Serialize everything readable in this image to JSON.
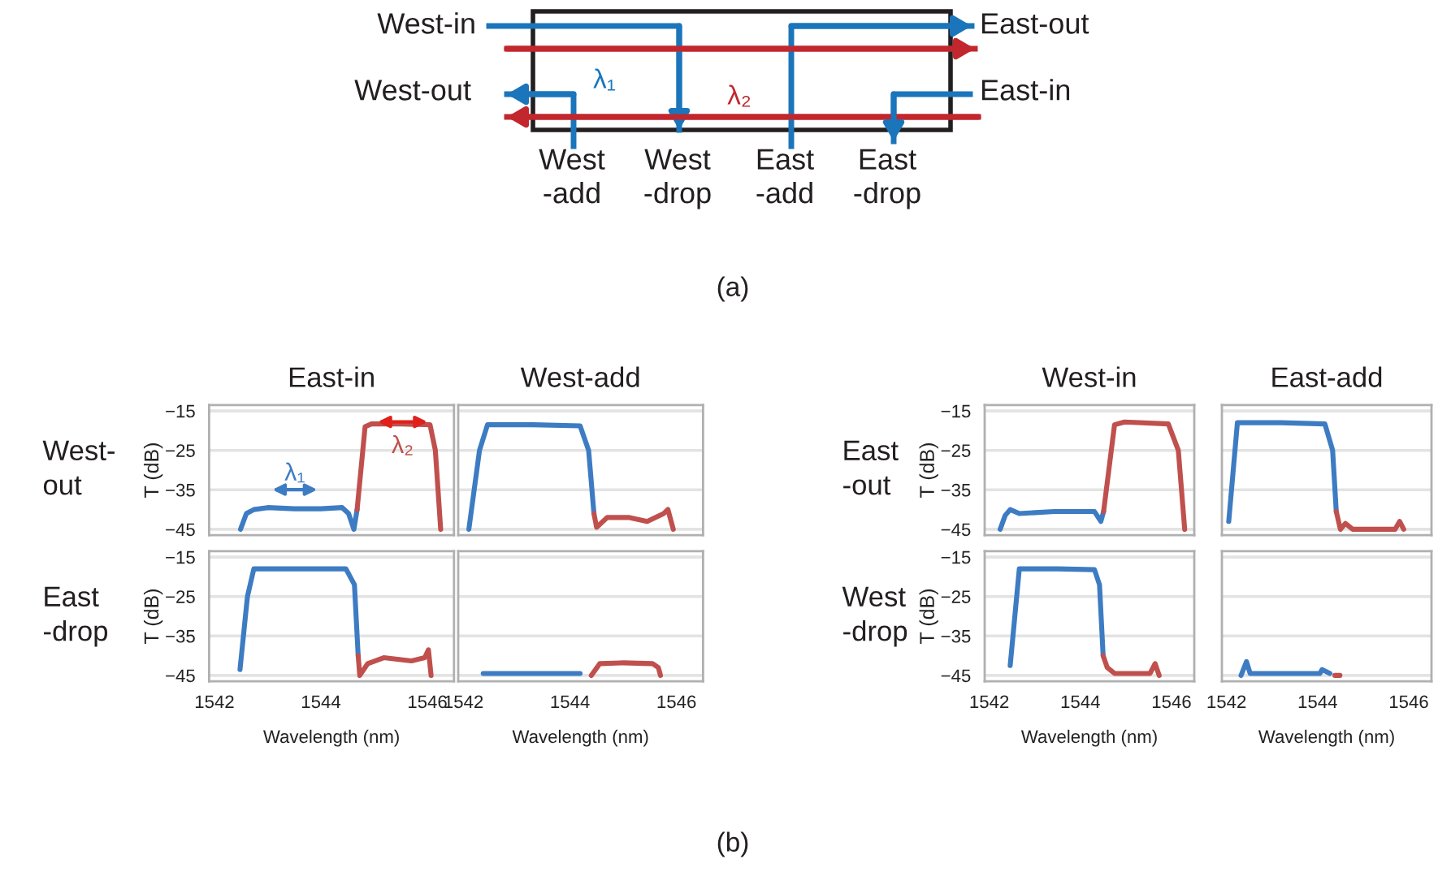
{
  "chart_data": [
    {
      "type": "other",
      "annotations": [
        "West-in",
        "West-out",
        "East-out",
        "East-in",
        "West\n-add",
        "West\n-drop",
        "East\n-add",
        "East\n-drop",
        "λ₁",
        "λ₂",
        "(a)",
        "(b)"
      ]
    },
    {
      "type": "line",
      "title": "East-in",
      "ylabel": "T (dB)",
      "xlim": [
        1541.9,
        1546.5
      ],
      "ylim": [
        -46.5,
        -13.5
      ],
      "yticks": [
        {
          "value": -15,
          "label": "−15"
        },
        {
          "value": -25,
          "label": "−25"
        },
        {
          "value": -35,
          "label": "−35"
        },
        {
          "value": -45,
          "label": "−45"
        }
      ],
      "grid": "y",
      "tick_labels": "y",
      "annotations": [
        "West-\nout",
        "λ₁",
        "λ₂"
      ],
      "series": [
        {
          "color": "#3d7cc2",
          "x": [
            1542.49,
            1542.6,
            1542.74,
            1543.0,
            1543.5,
            1544.0,
            1544.4,
            1544.52,
            1544.62,
            1544.68
          ],
          "values": [
            -45,
            -41,
            -40,
            -39.5,
            -39.8,
            -39.8,
            -39.5,
            -41,
            -45,
            -40
          ]
        },
        {
          "color": "#c0504d",
          "x": [
            1544.68,
            1544.83,
            1544.95,
            1545.5,
            1546.05,
            1546.15,
            1546.25
          ],
          "values": [
            -40,
            -19,
            -18.3,
            -18.3,
            -18.5,
            -25,
            -45
          ]
        }
      ]
    },
    {
      "type": "line",
      "title": "West-add",
      "xlim": [
        1541.9,
        1546.5
      ],
      "ylim": [
        -46.5,
        -13.5
      ],
      "yticks": [
        {
          "value": -15,
          "label": null
        },
        {
          "value": -25,
          "label": null
        },
        {
          "value": -35,
          "label": null
        },
        {
          "value": -45,
          "label": null
        }
      ],
      "grid": "y",
      "tick_labels": false,
      "series": [
        {
          "color": "#3d7cc2",
          "x": [
            1542.1,
            1542.3,
            1542.45,
            1543.3,
            1544.19,
            1544.35,
            1544.45
          ],
          "values": [
            -45,
            -25,
            -18.5,
            -18.5,
            -18.8,
            -25,
            -41
          ]
        },
        {
          "color": "#c0504d",
          "x": [
            1544.45,
            1544.5,
            1544.7,
            1545.1,
            1545.45,
            1545.76,
            1545.84,
            1545.94
          ],
          "values": [
            -41,
            -44.5,
            -42,
            -42,
            -43,
            -41,
            -40,
            -45
          ]
        }
      ]
    },
    {
      "type": "line",
      "title": "West-in",
      "ylabel": "T (dB)",
      "xlim": [
        1541.9,
        1546.5
      ],
      "ylim": [
        -46.5,
        -13.5
      ],
      "yticks": [
        {
          "value": -15,
          "label": "−15"
        },
        {
          "value": -25,
          "label": "−25"
        },
        {
          "value": -35,
          "label": "−35"
        },
        {
          "value": -45,
          "label": "−45"
        }
      ],
      "grid": "y",
      "tick_labels": "y",
      "annotations": [
        "East\n-out"
      ],
      "series": [
        {
          "color": "#3d7cc2",
          "x": [
            1542.24,
            1542.35,
            1542.46,
            1542.66,
            1543.43,
            1544.31,
            1544.45,
            1544.51
          ],
          "values": [
            -45,
            -41.5,
            -40,
            -41,
            -40.5,
            -40.5,
            -43,
            -40.5
          ]
        },
        {
          "color": "#c0504d",
          "x": [
            1544.51,
            1544.75,
            1544.97,
            1545.93,
            1546.15,
            1546.29
          ],
          "values": [
            -40.5,
            -18.5,
            -17.8,
            -18.3,
            -25,
            -45
          ]
        }
      ]
    },
    {
      "type": "line",
      "title": "East-add",
      "xlim": [
        1541.9,
        1546.5
      ],
      "ylim": [
        -46.5,
        -13.5
      ],
      "yticks": [
        {
          "value": -15,
          "label": null
        },
        {
          "value": -25,
          "label": null
        },
        {
          "value": -35,
          "label": null
        },
        {
          "value": -45,
          "label": null
        }
      ],
      "grid": "y",
      "tick_labels": false,
      "series": [
        {
          "color": "#3d7cc2",
          "x": [
            1542.05,
            1542.24,
            1543.2,
            1544.16,
            1544.33,
            1544.41
          ],
          "values": [
            -43,
            -18,
            -18,
            -18.3,
            -25,
            -40.5
          ]
        },
        {
          "color": "#c0504d",
          "x": [
            1544.41,
            1544.5,
            1544.61,
            1544.77,
            1545.7,
            1545.8,
            1545.89
          ],
          "values": [
            -40.5,
            -45,
            -43.5,
            -45,
            -45,
            -43,
            -45
          ]
        }
      ]
    },
    {
      "type": "line",
      "ylabel": "T (dB)",
      "xlabel": "Wavelength (nm)",
      "xlim": [
        1541.9,
        1546.5
      ],
      "ylim": [
        -46.5,
        -13.5
      ],
      "xticks": [
        1542,
        1544,
        1546
      ],
      "yticks": [
        {
          "value": -15,
          "label": "−15"
        },
        {
          "value": -25,
          "label": "−25"
        },
        {
          "value": -35,
          "label": "−35"
        },
        {
          "value": -45,
          "label": "−45"
        }
      ],
      "grid": "y",
      "annotations": [
        "East\n-drop"
      ],
      "series": [
        {
          "color": "#3d7cc2",
          "x": [
            1542.48,
            1542.62,
            1542.74,
            1543.5,
            1544.47,
            1544.63,
            1544.7
          ],
          "values": [
            -43.5,
            -25,
            -18,
            -18,
            -18,
            -22,
            -40
          ]
        },
        {
          "color": "#c0504d",
          "x": [
            1544.7,
            1544.73,
            1544.88,
            1545.18,
            1545.7,
            1545.95,
            1546.02,
            1546.07
          ],
          "values": [
            -40,
            -45,
            -42,
            -40.5,
            -41.3,
            -40.5,
            -38.5,
            -45
          ]
        }
      ]
    },
    {
      "type": "line",
      "xlabel": "Wavelength (nm)",
      "xlim": [
        1541.9,
        1546.5
      ],
      "ylim": [
        -46.5,
        -13.5
      ],
      "xticks": [
        1542,
        1544,
        1546
      ],
      "yticks": [
        {
          "value": -15,
          "label": null
        },
        {
          "value": -25,
          "label": null
        },
        {
          "value": -35,
          "label": null
        },
        {
          "value": -45,
          "label": null
        }
      ],
      "grid": "y",
      "tick_labels": "x",
      "series": [
        {
          "color": "#3d7cc2",
          "x": [
            1542.37,
            1543.2,
            1544.19
          ],
          "values": [
            -44.5,
            -44.5,
            -44.5
          ]
        },
        {
          "color": "#c0504d",
          "x": [
            1544.4,
            1544.56,
            1545.0,
            1545.55,
            1545.66,
            1545.7
          ],
          "values": [
            -45,
            -42,
            -41.8,
            -42,
            -43,
            -45
          ]
        }
      ]
    },
    {
      "type": "line",
      "ylabel": "T (dB)",
      "xlabel": "Wavelength (nm)",
      "xlim": [
        1541.9,
        1546.5
      ],
      "ylim": [
        -46.5,
        -13.5
      ],
      "xticks": [
        1542,
        1544,
        1546
      ],
      "yticks": [
        {
          "value": -15,
          "label": "−15"
        },
        {
          "value": -25,
          "label": "−25"
        },
        {
          "value": -35,
          "label": "−35"
        },
        {
          "value": -45,
          "label": "−45"
        }
      ],
      "grid": "y",
      "annotations": [
        "West\n-drop"
      ],
      "series": [
        {
          "color": "#3d7cc2",
          "x": [
            1542.46,
            1542.66,
            1543.5,
            1544.31,
            1544.42,
            1544.5
          ],
          "values": [
            -42.5,
            -18,
            -18,
            -18.2,
            -22,
            -40
          ]
        },
        {
          "color": "#c0504d",
          "x": [
            1544.5,
            1544.59,
            1544.75,
            1545.53,
            1545.64,
            1545.73
          ],
          "values": [
            -40,
            -43,
            -44.5,
            -44.5,
            -42,
            -45
          ]
        }
      ]
    },
    {
      "type": "line",
      "xlabel": "Wavelength (nm)",
      "xlim": [
        1541.9,
        1546.5
      ],
      "ylim": [
        -46.5,
        -13.5
      ],
      "xticks": [
        1542,
        1544,
        1546
      ],
      "yticks": [
        {
          "value": -15,
          "label": null
        },
        {
          "value": -25,
          "label": null
        },
        {
          "value": -35,
          "label": null
        },
        {
          "value": -45,
          "label": null
        }
      ],
      "grid": "y",
      "tick_labels": "x",
      "series": [
        {
          "color": "#3d7cc2",
          "x": [
            1542.32,
            1542.44,
            1542.52,
            1543.3,
            1544.05,
            1544.1,
            1544.27
          ],
          "values": [
            -45,
            -41.5,
            -44.5,
            -44.5,
            -44.5,
            -43.5,
            -44.5
          ]
        },
        {
          "color": "#c0504d",
          "x": [
            1544.38,
            1544.49
          ],
          "values": [
            -45,
            -45
          ]
        }
      ]
    }
  ]
}
